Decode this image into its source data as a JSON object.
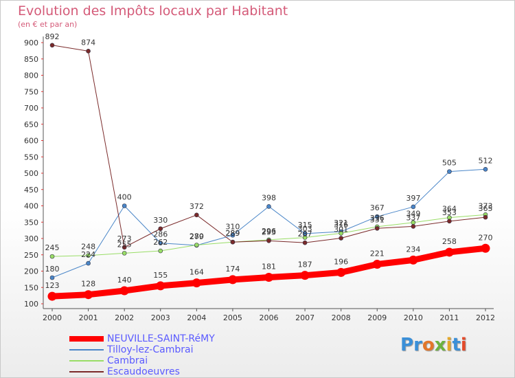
{
  "title": "Evolution des Impôts locaux par Habitant",
  "subtitle": "(en € et par an)",
  "brand": {
    "text": "Proxiti",
    "letter_colors": [
      "#3a8fd8",
      "#3a8fd8",
      "#e3762a",
      "#6cb33e",
      "#e3a82a",
      "#3a8fd8",
      "#e34a2a"
    ]
  },
  "chart_data": {
    "type": "line",
    "title": "Evolution des Impôts locaux par Habitant",
    "subtitle": "(en € et par an)",
    "xlabel": "",
    "ylabel": "",
    "x": [
      "2000",
      "2001",
      "2002",
      "2003",
      "2004",
      "2005",
      "2006",
      "2007",
      "2008",
      "2009",
      "2010",
      "2011",
      "2012"
    ],
    "ylim": [
      100,
      900
    ],
    "yticks": [
      100,
      150,
      200,
      250,
      300,
      350,
      400,
      450,
      500,
      550,
      600,
      650,
      700,
      750,
      800,
      850,
      900
    ],
    "grid": false,
    "legend_position": "bottom-left",
    "series": [
      {
        "name": "NEUVILLE-SAINT-RéMY",
        "color": "#ff0000",
        "width": 9,
        "values": [
          123,
          128,
          140,
          155,
          164,
          174,
          181,
          187,
          196,
          221,
          234,
          258,
          270
        ]
      },
      {
        "name": "Tilloy-lez-Cambrai",
        "color": "#4a86c8",
        "width": 1,
        "values": [
          180,
          224,
          400,
          286,
          279,
          310,
          398,
          315,
          321,
          367,
          397,
          505,
          512
        ]
      },
      {
        "name": "Cambrai",
        "color": "#99dd66",
        "width": 1,
        "values": [
          245,
          248,
          255,
          262,
          280,
          289,
          296,
          303,
          316,
          336,
          349,
          364,
          373
        ]
      },
      {
        "name": "Escaudoeuvres",
        "color": "#7a2a2a",
        "width": 1,
        "values": [
          892,
          874,
          273,
          330,
          372,
          289,
          293,
          287,
          301,
          331,
          337,
          353,
          365
        ]
      }
    ]
  }
}
